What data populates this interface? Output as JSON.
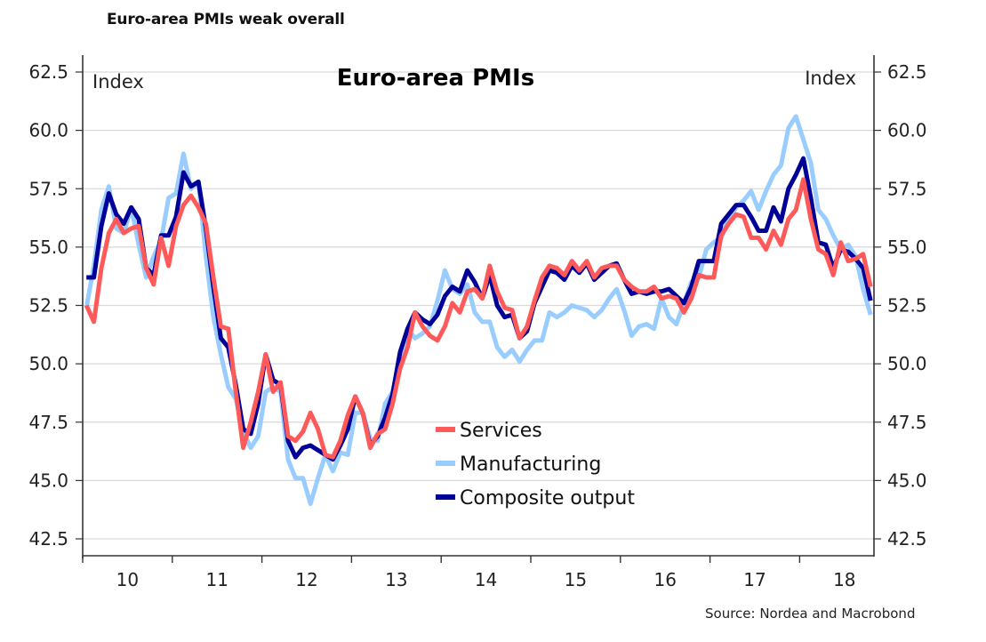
{
  "heading": "Euro-area PMIs weak overall",
  "source": "Source: Nordea and Macrobond",
  "colors": {
    "services": "#ff5a5a",
    "manufacturing": "#99ccff",
    "composite": "#000099",
    "grid": "#d9d9d9",
    "axis": "#333333"
  },
  "chart_data": {
    "type": "line",
    "title": "Euro-area PMIs",
    "ylabel_left": "Index",
    "ylabel_right": "Index",
    "xlabel": "",
    "ylim": [
      42.5,
      62.5
    ],
    "yticks": [
      "62.5",
      "60.0",
      "57.5",
      "55.0",
      "52.5",
      "50.0",
      "47.5",
      "45.0",
      "42.5"
    ],
    "ytick_values": [
      62.5,
      60.0,
      57.5,
      55.0,
      52.5,
      50.0,
      47.5,
      45.0,
      42.5
    ],
    "x_start": "2010-01",
    "x_frequency": "monthly",
    "xticks": [
      "10",
      "11",
      "12",
      "13",
      "14",
      "15",
      "16",
      "17",
      "18"
    ],
    "grid": true,
    "legend_position": "center-bottom",
    "series": [
      {
        "name": "Services",
        "key": "services",
        "values": [
          52.5,
          51.8,
          54.1,
          55.6,
          56.2,
          55.6,
          55.8,
          55.9,
          54.1,
          53.4,
          55.4,
          54.2,
          55.9,
          56.8,
          57.2,
          56.7,
          56.0,
          53.7,
          51.6,
          51.5,
          48.8,
          46.4,
          47.5,
          48.8,
          50.4,
          48.8,
          49.2,
          46.9,
          46.7,
          47.1,
          47.9,
          47.2,
          46.1,
          46.0,
          46.7,
          47.8,
          48.6,
          47.9,
          46.4,
          47.0,
          47.2,
          48.3,
          49.8,
          50.7,
          52.2,
          51.6,
          51.2,
          51.0,
          51.6,
          52.6,
          52.2,
          53.1,
          53.2,
          52.8,
          54.2,
          53.1,
          52.4,
          52.3,
          51.1,
          51.6,
          52.7,
          53.7,
          54.2,
          54.1,
          53.8,
          54.4,
          54.0,
          54.4,
          53.7,
          54.1,
          54.2,
          54.2,
          53.6,
          53.3,
          53.1,
          53.1,
          53.3,
          52.8,
          52.9,
          52.8,
          52.2,
          52.8,
          53.8,
          53.7,
          53.7,
          55.5,
          56.0,
          56.4,
          56.3,
          55.4,
          55.4,
          54.9,
          55.7,
          55.1,
          56.2,
          56.6,
          57.9,
          56.2,
          54.9,
          54.7,
          53.8,
          55.2,
          54.4,
          54.5,
          54.7,
          53.3
        ]
      },
      {
        "name": "Manufacturing",
        "key": "manufacturing",
        "values": [
          52.4,
          54.2,
          56.6,
          57.6,
          55.8,
          55.6,
          56.7,
          55.1,
          53.7,
          54.6,
          55.3,
          57.1,
          57.3,
          59.0,
          57.5,
          57.8,
          54.6,
          52.0,
          50.4,
          49.0,
          48.5,
          47.1,
          46.4,
          46.9,
          48.8,
          49.0,
          48.8,
          45.9,
          45.1,
          45.1,
          44.0,
          45.1,
          46.1,
          45.4,
          46.2,
          46.1,
          47.9,
          47.9,
          46.8,
          46.7,
          48.3,
          48.8,
          50.3,
          51.5,
          51.1,
          51.3,
          51.6,
          52.7,
          54.0,
          53.2,
          53.0,
          53.4,
          52.2,
          51.8,
          51.8,
          50.7,
          50.3,
          50.6,
          50.1,
          50.6,
          51.0,
          51.0,
          52.2,
          52.0,
          52.2,
          52.5,
          52.4,
          52.3,
          52.0,
          52.3,
          52.8,
          53.2,
          52.3,
          51.2,
          51.6,
          51.7,
          51.5,
          52.8,
          52.0,
          51.7,
          52.6,
          53.5,
          53.7,
          54.9,
          55.2,
          55.4,
          56.2,
          56.7,
          57.0,
          57.4,
          56.6,
          57.4,
          58.1,
          58.5,
          60.1,
          60.6,
          59.6,
          58.6,
          56.6,
          56.2,
          55.5,
          54.9,
          55.1,
          54.6,
          53.2,
          52.1
        ]
      },
      {
        "name": "Composite output",
        "key": "composite",
        "values": [
          53.7,
          53.7,
          55.9,
          57.3,
          56.4,
          56.0,
          56.7,
          56.2,
          54.1,
          53.8,
          55.5,
          55.5,
          56.3,
          58.2,
          57.6,
          57.8,
          55.8,
          53.3,
          51.1,
          50.7,
          49.1,
          47.2,
          47.0,
          48.3,
          50.4,
          49.3,
          49.1,
          46.7,
          46.0,
          46.4,
          46.5,
          46.3,
          46.1,
          45.9,
          46.5,
          47.2,
          48.6,
          47.9,
          46.5,
          46.9,
          47.7,
          48.7,
          50.5,
          51.5,
          52.2,
          51.9,
          51.7,
          52.1,
          52.9,
          53.3,
          53.1,
          54.0,
          53.5,
          52.8,
          53.8,
          52.5,
          52.0,
          52.1,
          51.1,
          51.4,
          52.6,
          53.3,
          54.0,
          53.9,
          53.6,
          54.2,
          53.9,
          54.3,
          53.6,
          53.9,
          54.2,
          54.3,
          53.6,
          53.0,
          53.1,
          53.0,
          53.1,
          53.1,
          53.2,
          52.9,
          52.6,
          53.3,
          54.4,
          54.4,
          54.4,
          56.0,
          56.4,
          56.8,
          56.8,
          56.3,
          55.7,
          55.7,
          56.7,
          56.1,
          57.5,
          58.1,
          58.8,
          57.1,
          55.2,
          55.1,
          54.1,
          54.9,
          54.8,
          54.5,
          54.1,
          52.7
        ]
      }
    ]
  }
}
